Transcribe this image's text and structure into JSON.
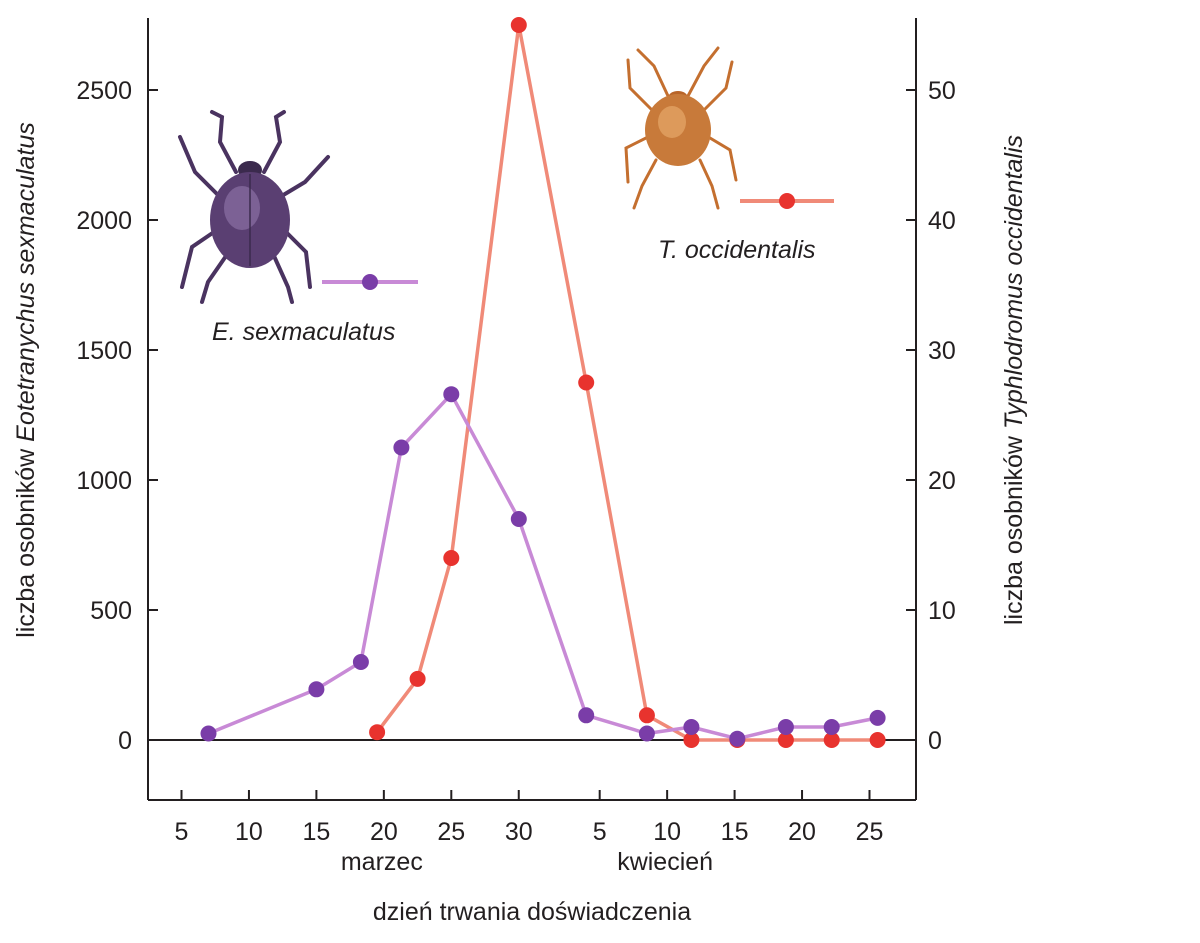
{
  "chart_data": {
    "type": "line",
    "xlabel": "dzień trwania doświadczenia",
    "ylabel": {
      "prefix": "liczba osobników",
      "species": "Eotetranychus sexmaculatus"
    },
    "y2label": {
      "prefix": "liczba osobników",
      "species": "Typhlodromus occidentalis"
    },
    "ylim": [
      -250,
      2750
    ],
    "y2lim": [
      -5,
      55
    ],
    "yticks": [
      0,
      500,
      1000,
      1500,
      2000,
      2500
    ],
    "y2ticks": [
      0,
      10,
      20,
      30,
      40,
      50
    ],
    "xlim": [
      0,
      58
    ],
    "xticks": [
      {
        "x": 1,
        "label": "5"
      },
      {
        "x": 6,
        "label": "10"
      },
      {
        "x": 11,
        "label": "15"
      },
      {
        "x": 16,
        "label": "20"
      },
      {
        "x": 21,
        "label": "25"
      },
      {
        "x": 26,
        "label": "30"
      },
      {
        "x": 32,
        "label": "5"
      },
      {
        "x": 37,
        "label": "10"
      },
      {
        "x": 42,
        "label": "15"
      },
      {
        "x": 47,
        "label": "20"
      },
      {
        "x": 52,
        "label": "25"
      }
    ],
    "months": [
      {
        "label": "marzec",
        "x": 16
      },
      {
        "label": "kwiecień",
        "x": 37
      }
    ],
    "series": [
      {
        "name": "E. sexmaculatus",
        "axis": "left",
        "color": "#c88ad6",
        "marker_color": "#7a3da8",
        "x": [
          3,
          11,
          14.3,
          17.3,
          21,
          26,
          31,
          35.5,
          38.8,
          42.2,
          45.8,
          49.2,
          52.6
        ],
        "y": [
          25,
          195,
          300,
          1125,
          1330,
          850,
          95,
          25,
          50,
          5,
          50,
          50,
          85
        ]
      },
      {
        "name": "T. occidentalis",
        "axis": "right",
        "color": "#f08a78",
        "marker_color": "#e8332e",
        "x": [
          15.5,
          18.5,
          21,
          26,
          31,
          35.5,
          38.8,
          42.2,
          45.8,
          49.2,
          52.6
        ],
        "y": [
          0.6,
          4.7,
          14,
          55,
          27.5,
          1.9,
          0,
          0,
          0,
          0,
          0
        ]
      }
    ]
  },
  "colors": {
    "e_body": "#5a3f72",
    "t_body": "#c87a3a"
  },
  "icons": {
    "e_mite": "mite-illustration-purple",
    "t_mite": "mite-illustration-orange"
  }
}
